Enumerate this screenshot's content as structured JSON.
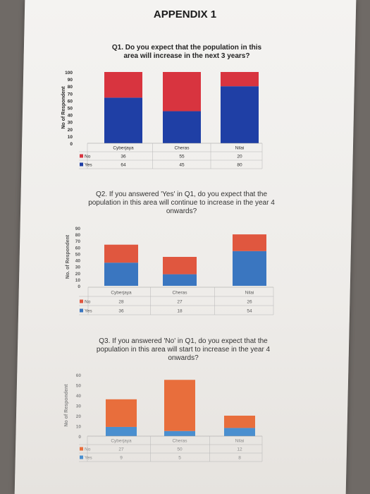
{
  "page_title": "APPENDIX 1",
  "colors": {
    "q1_yes": "#1f3fa5",
    "q1_no": "#d8343f",
    "q2_yes": "#3a76c0",
    "q2_no": "#e0573f",
    "q3_yes": "#4a8fcf",
    "q3_no": "#e86e3c"
  },
  "chart_data": [
    {
      "type": "bar",
      "stacked": true,
      "title": "Q1. Do you expect that the population in this area will increase in the next 3 years?",
      "ylabel": "No of Respondent",
      "ylim": [
        0,
        100
      ],
      "yticks": [
        "0",
        "10",
        "20",
        "30",
        "40",
        "50",
        "60",
        "70",
        "80",
        "90",
        "100"
      ],
      "categories": [
        "Cyberjaya",
        "Cheras",
        "Nilai"
      ],
      "series": [
        {
          "name": "No",
          "values": [
            36,
            55,
            20
          ]
        },
        {
          "name": "Yes",
          "values": [
            64,
            45,
            80
          ]
        }
      ]
    },
    {
      "type": "bar",
      "stacked": true,
      "title": "Q2. If you answered 'Yes' in Q1, do you expect that the population in this area will continue to increase in the year 4 onwards?",
      "ylabel": "No. of Respondent",
      "ylim": [
        0,
        90
      ],
      "yticks": [
        "0",
        "10",
        "20",
        "30",
        "40",
        "50",
        "60",
        "70",
        "80",
        "90"
      ],
      "categories": [
        "Cyberjaya",
        "Cheras",
        "Nilai"
      ],
      "series": [
        {
          "name": "No",
          "values": [
            28,
            27,
            26
          ]
        },
        {
          "name": "Yes",
          "values": [
            36,
            18,
            54
          ]
        }
      ]
    },
    {
      "type": "bar",
      "stacked": true,
      "title": "Q3. If you answered 'No' in Q1, do you expect that the population in this area will start to increase in the year 4 onwards?",
      "ylabel": "No of Respondent",
      "ylim": [
        0,
        60
      ],
      "yticks": [
        "0",
        "10",
        "20",
        "30",
        "40",
        "50",
        "60"
      ],
      "categories": [
        "Cyberjaya",
        "Cheras",
        "Nilai"
      ],
      "series": [
        {
          "name": "No",
          "values": [
            27,
            50,
            12
          ]
        },
        {
          "name": "Yes",
          "values": [
            9,
            5,
            8
          ]
        }
      ]
    }
  ]
}
